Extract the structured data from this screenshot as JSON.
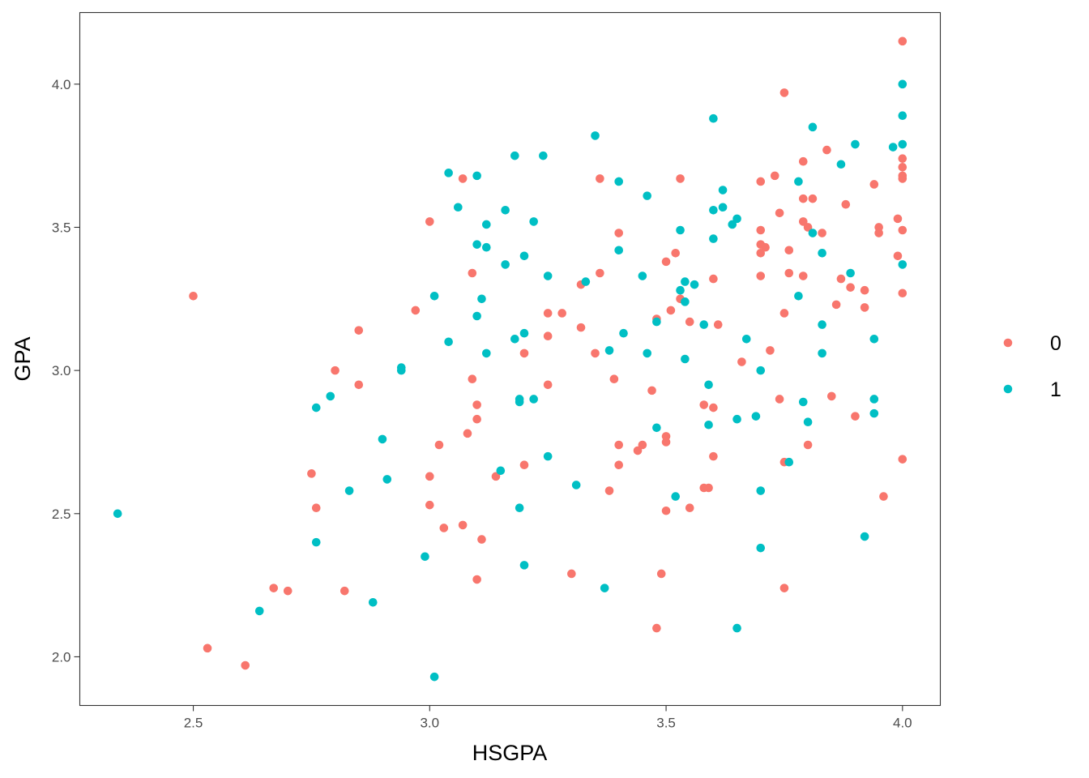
{
  "chart_data": {
    "type": "scatter",
    "xlabel": "HSGPA",
    "ylabel": "GPA",
    "xlim": [
      2.26,
      4.08
    ],
    "ylim": [
      1.83,
      4.25
    ],
    "x_ticks": [
      2.5,
      3.0,
      3.5,
      4.0
    ],
    "x_tick_labels": [
      "2.5",
      "3.0",
      "3.5",
      "4.0"
    ],
    "y_ticks": [
      2.0,
      2.5,
      3.0,
      3.5,
      4.0
    ],
    "y_tick_labels": [
      "2.0",
      "2.5",
      "3.0",
      "3.5",
      "4.0"
    ],
    "grid": false,
    "legend_position": "right",
    "series": [
      {
        "name": "0",
        "color": "#F8766D",
        "points": [
          [
            2.5,
            3.26
          ],
          [
            2.53,
            2.03
          ],
          [
            2.61,
            1.97
          ],
          [
            2.67,
            2.24
          ],
          [
            2.7,
            2.23
          ],
          [
            2.75,
            2.64
          ],
          [
            2.76,
            2.52
          ],
          [
            2.8,
            3.0
          ],
          [
            2.82,
            2.23
          ],
          [
            2.85,
            3.14
          ],
          [
            2.85,
            2.95
          ],
          [
            2.97,
            3.21
          ],
          [
            3.0,
            3.52
          ],
          [
            3.0,
            2.63
          ],
          [
            3.0,
            2.53
          ],
          [
            3.02,
            2.74
          ],
          [
            3.03,
            2.45
          ],
          [
            3.07,
            3.67
          ],
          [
            3.07,
            2.46
          ],
          [
            3.08,
            2.78
          ],
          [
            3.09,
            3.34
          ],
          [
            3.09,
            2.97
          ],
          [
            3.1,
            2.88
          ],
          [
            3.1,
            2.83
          ],
          [
            3.1,
            2.27
          ],
          [
            3.11,
            2.41
          ],
          [
            3.14,
            2.63
          ],
          [
            3.2,
            3.06
          ],
          [
            3.2,
            2.67
          ],
          [
            3.25,
            3.2
          ],
          [
            3.25,
            3.12
          ],
          [
            3.25,
            2.95
          ],
          [
            3.28,
            3.2
          ],
          [
            3.3,
            2.29
          ],
          [
            3.32,
            3.3
          ],
          [
            3.32,
            3.15
          ],
          [
            3.35,
            3.06
          ],
          [
            3.36,
            3.67
          ],
          [
            3.36,
            3.34
          ],
          [
            3.38,
            2.58
          ],
          [
            3.39,
            2.97
          ],
          [
            3.4,
            3.48
          ],
          [
            3.4,
            2.74
          ],
          [
            3.4,
            2.67
          ],
          [
            3.44,
            2.72
          ],
          [
            3.45,
            2.74
          ],
          [
            3.47,
            2.93
          ],
          [
            3.48,
            3.18
          ],
          [
            3.48,
            2.1
          ],
          [
            3.49,
            2.29
          ],
          [
            3.5,
            3.38
          ],
          [
            3.5,
            2.77
          ],
          [
            3.5,
            2.75
          ],
          [
            3.5,
            2.51
          ],
          [
            3.51,
            3.21
          ],
          [
            3.52,
            3.41
          ],
          [
            3.53,
            3.67
          ],
          [
            3.53,
            3.25
          ],
          [
            3.55,
            3.17
          ],
          [
            3.55,
            2.52
          ],
          [
            3.58,
            2.88
          ],
          [
            3.58,
            2.59
          ],
          [
            3.59,
            2.59
          ],
          [
            3.6,
            3.32
          ],
          [
            3.6,
            2.87
          ],
          [
            3.6,
            2.7
          ],
          [
            3.61,
            3.16
          ],
          [
            3.66,
            3.03
          ],
          [
            3.7,
            3.66
          ],
          [
            3.7,
            3.49
          ],
          [
            3.7,
            3.44
          ],
          [
            3.7,
            3.41
          ],
          [
            3.7,
            3.33
          ],
          [
            3.71,
            3.43
          ],
          [
            3.72,
            3.07
          ],
          [
            3.73,
            3.68
          ],
          [
            3.74,
            3.55
          ],
          [
            3.74,
            2.9
          ],
          [
            3.75,
            3.97
          ],
          [
            3.75,
            3.2
          ],
          [
            3.75,
            2.68
          ],
          [
            3.75,
            2.24
          ],
          [
            3.76,
            3.42
          ],
          [
            3.76,
            3.34
          ],
          [
            3.79,
            3.73
          ],
          [
            3.79,
            3.6
          ],
          [
            3.79,
            3.52
          ],
          [
            3.79,
            3.33
          ],
          [
            3.8,
            3.5
          ],
          [
            3.8,
            2.74
          ],
          [
            3.81,
            3.6
          ],
          [
            3.83,
            3.48
          ],
          [
            3.84,
            3.77
          ],
          [
            3.85,
            2.91
          ],
          [
            3.86,
            3.23
          ],
          [
            3.87,
            3.32
          ],
          [
            3.88,
            3.58
          ],
          [
            3.89,
            3.29
          ],
          [
            3.9,
            2.84
          ],
          [
            3.92,
            3.28
          ],
          [
            3.92,
            3.22
          ],
          [
            3.94,
            3.65
          ],
          [
            3.95,
            3.5
          ],
          [
            3.95,
            3.48
          ],
          [
            3.96,
            2.56
          ],
          [
            3.99,
            3.53
          ],
          [
            3.99,
            3.4
          ],
          [
            4.0,
            4.15
          ],
          [
            4.0,
            3.74
          ],
          [
            4.0,
            3.71
          ],
          [
            4.0,
            3.68
          ],
          [
            4.0,
            3.67
          ],
          [
            4.0,
            3.49
          ],
          [
            4.0,
            3.27
          ],
          [
            4.0,
            2.69
          ]
        ]
      },
      {
        "name": "1",
        "color": "#00BFC4",
        "points": [
          [
            2.34,
            2.5
          ],
          [
            2.64,
            2.16
          ],
          [
            2.76,
            2.87
          ],
          [
            2.76,
            2.4
          ],
          [
            2.79,
            2.91
          ],
          [
            2.83,
            2.58
          ],
          [
            2.88,
            2.19
          ],
          [
            2.9,
            2.76
          ],
          [
            2.91,
            2.62
          ],
          [
            2.94,
            3.01
          ],
          [
            2.94,
            3.0
          ],
          [
            2.99,
            2.35
          ],
          [
            3.01,
            3.26
          ],
          [
            3.01,
            1.93
          ],
          [
            3.04,
            3.69
          ],
          [
            3.04,
            3.1
          ],
          [
            3.06,
            3.57
          ],
          [
            3.1,
            3.68
          ],
          [
            3.1,
            3.44
          ],
          [
            3.1,
            3.19
          ],
          [
            3.11,
            3.25
          ],
          [
            3.12,
            3.51
          ],
          [
            3.12,
            3.43
          ],
          [
            3.12,
            3.06
          ],
          [
            3.15,
            2.65
          ],
          [
            3.16,
            3.56
          ],
          [
            3.16,
            3.37
          ],
          [
            3.18,
            3.75
          ],
          [
            3.18,
            3.11
          ],
          [
            3.19,
            2.9
          ],
          [
            3.19,
            2.89
          ],
          [
            3.19,
            2.52
          ],
          [
            3.2,
            3.4
          ],
          [
            3.2,
            3.13
          ],
          [
            3.2,
            2.32
          ],
          [
            3.22,
            3.52
          ],
          [
            3.22,
            2.9
          ],
          [
            3.24,
            3.75
          ],
          [
            3.25,
            3.33
          ],
          [
            3.25,
            2.7
          ],
          [
            3.31,
            2.6
          ],
          [
            3.33,
            3.31
          ],
          [
            3.35,
            3.82
          ],
          [
            3.37,
            2.24
          ],
          [
            3.38,
            3.07
          ],
          [
            3.4,
            3.66
          ],
          [
            3.4,
            3.42
          ],
          [
            3.41,
            3.13
          ],
          [
            3.45,
            3.33
          ],
          [
            3.46,
            3.61
          ],
          [
            3.46,
            3.06
          ],
          [
            3.48,
            3.17
          ],
          [
            3.48,
            2.8
          ],
          [
            3.52,
            2.56
          ],
          [
            3.53,
            3.49
          ],
          [
            3.53,
            3.28
          ],
          [
            3.54,
            3.31
          ],
          [
            3.54,
            3.24
          ],
          [
            3.54,
            3.04
          ],
          [
            3.56,
            3.3
          ],
          [
            3.58,
            3.16
          ],
          [
            3.59,
            2.95
          ],
          [
            3.59,
            2.81
          ],
          [
            3.6,
            3.88
          ],
          [
            3.6,
            3.56
          ],
          [
            3.6,
            3.46
          ],
          [
            3.62,
            3.63
          ],
          [
            3.62,
            3.57
          ],
          [
            3.64,
            3.51
          ],
          [
            3.65,
            3.53
          ],
          [
            3.65,
            2.83
          ],
          [
            3.65,
            2.1
          ],
          [
            3.67,
            3.11
          ],
          [
            3.69,
            2.84
          ],
          [
            3.7,
            3.0
          ],
          [
            3.7,
            2.58
          ],
          [
            3.7,
            2.38
          ],
          [
            3.76,
            2.68
          ],
          [
            3.78,
            3.66
          ],
          [
            3.78,
            3.26
          ],
          [
            3.79,
            2.89
          ],
          [
            3.8,
            2.82
          ],
          [
            3.81,
            3.85
          ],
          [
            3.81,
            3.48
          ],
          [
            3.83,
            3.41
          ],
          [
            3.83,
            3.16
          ],
          [
            3.83,
            3.06
          ],
          [
            3.87,
            3.72
          ],
          [
            3.89,
            3.34
          ],
          [
            3.9,
            3.79
          ],
          [
            3.92,
            2.42
          ],
          [
            3.94,
            3.11
          ],
          [
            3.94,
            2.9
          ],
          [
            3.94,
            2.85
          ],
          [
            3.98,
            3.78
          ],
          [
            4.0,
            4.0
          ],
          [
            4.0,
            3.89
          ],
          [
            4.0,
            3.79
          ],
          [
            4.0,
            3.37
          ]
        ]
      }
    ]
  }
}
